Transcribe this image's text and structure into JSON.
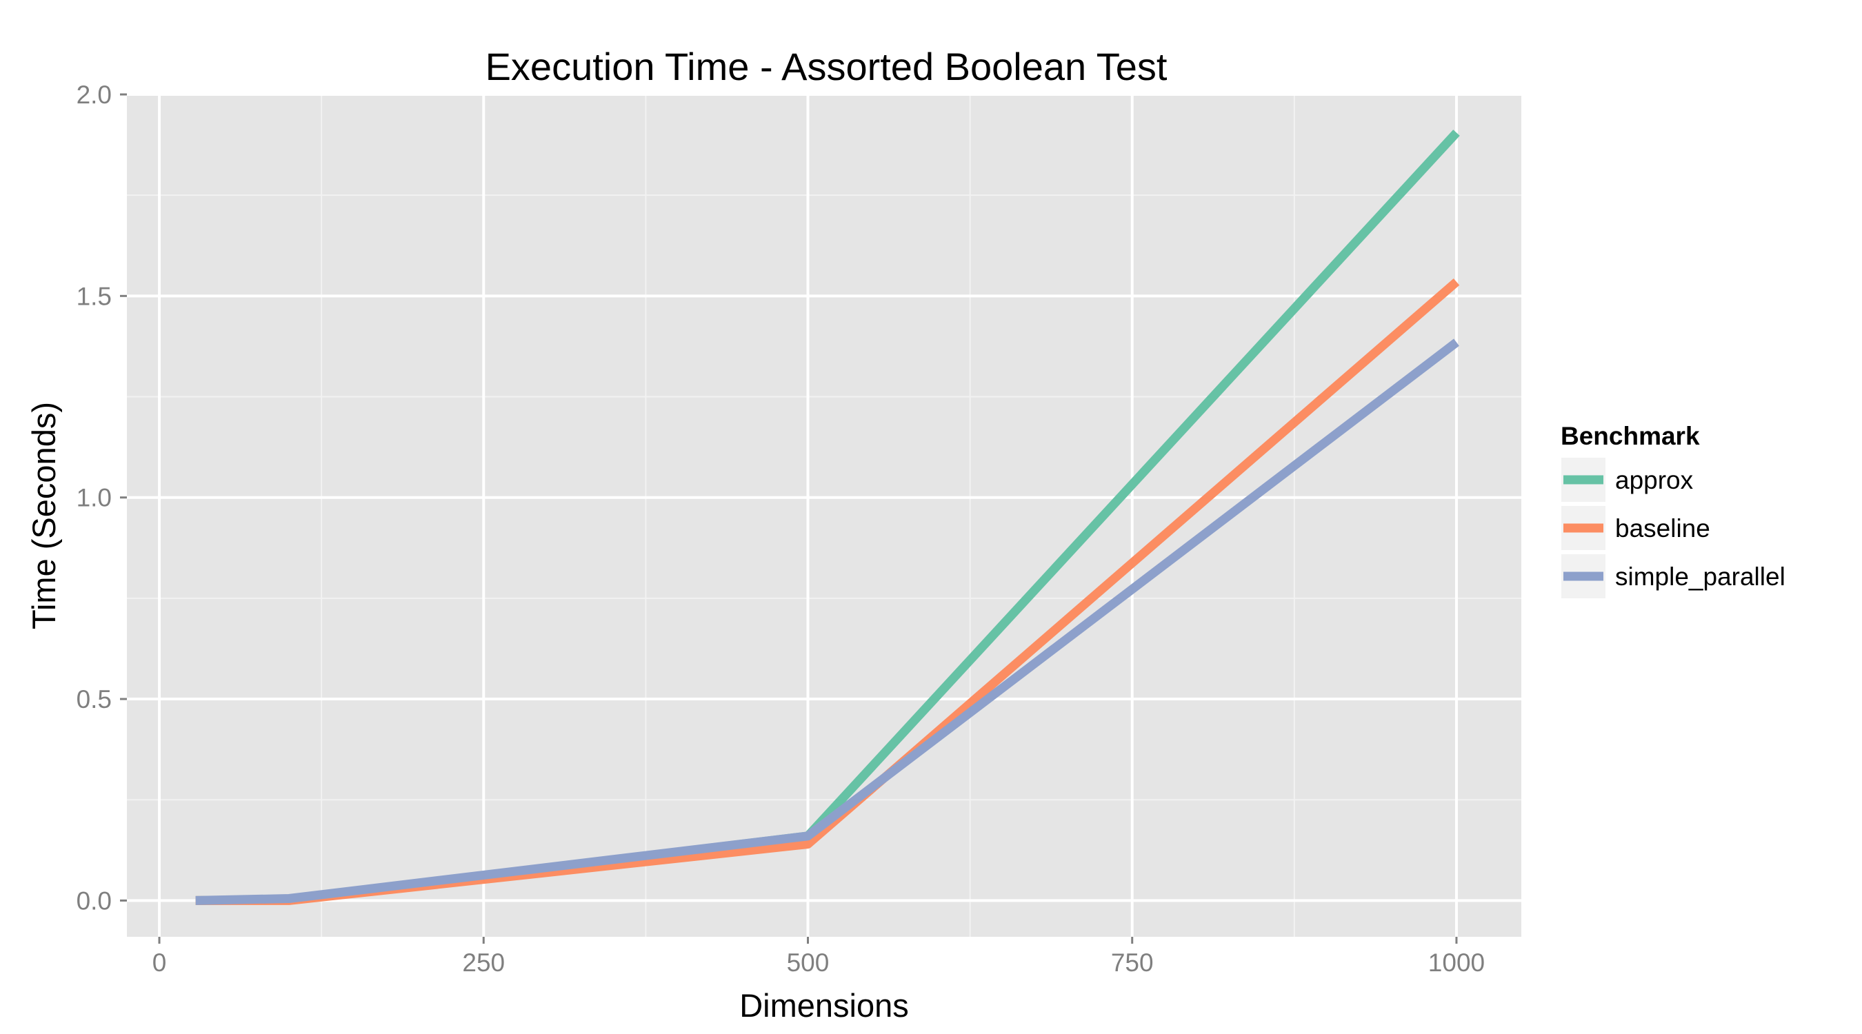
{
  "chart_data": {
    "type": "line",
    "title": "Execution Time - Assorted Boolean Test",
    "xlabel": "Dimensions",
    "ylabel": "Time (Seconds)",
    "xlim": [
      -25,
      1050
    ],
    "ylim": [
      -0.09,
      2.0
    ],
    "x_ticks": [
      0,
      250,
      500,
      750,
      1000
    ],
    "y_ticks": [
      0.0,
      0.5,
      1.0,
      1.5,
      2.0
    ],
    "x_tick_labels": [
      "0",
      "250",
      "500",
      "750",
      "1000"
    ],
    "y_tick_labels": [
      "0.0",
      "0.5",
      "1.0",
      "1.5",
      "2.0"
    ],
    "grid": true,
    "legend_title": "Benchmark",
    "legend_position": "right",
    "series": [
      {
        "name": "approx",
        "color": "#66c2a5",
        "x": [
          28,
          100,
          500,
          1000
        ],
        "y": [
          0.0,
          0.002,
          0.16,
          1.905
        ]
      },
      {
        "name": "baseline",
        "color": "#fc8d62",
        "x": [
          28,
          100,
          500,
          1000
        ],
        "y": [
          0.0,
          0.0,
          0.14,
          1.535
        ]
      },
      {
        "name": "simple_parallel",
        "color": "#8da0cb",
        "x": [
          28,
          100,
          500,
          1000
        ],
        "y": [
          0.0,
          0.005,
          0.16,
          1.385
        ]
      }
    ]
  }
}
